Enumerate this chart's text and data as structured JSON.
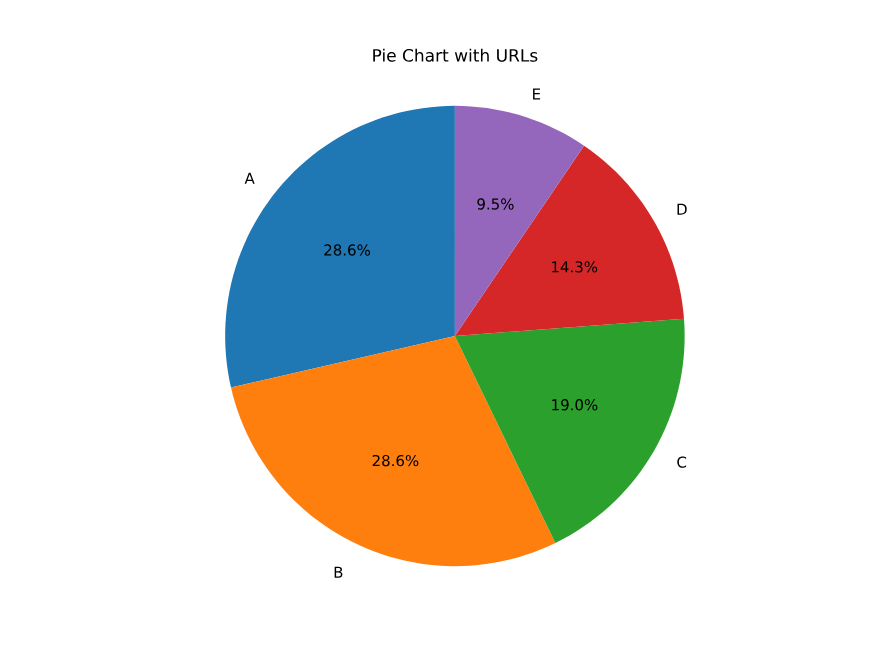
{
  "chart_data": {
    "type": "pie",
    "title": "Pie Chart with URLs",
    "categories": [
      "A",
      "B",
      "C",
      "D",
      "E"
    ],
    "values": [
      28.6,
      28.6,
      19.0,
      14.3,
      9.5
    ],
    "colors": [
      "#1f77b4",
      "#ff7f0e",
      "#2ca02c",
      "#d62728",
      "#9467bd"
    ],
    "value_labels": [
      "28.6%",
      "28.6%",
      "19.0%",
      "14.3%",
      "9.5%"
    ]
  }
}
